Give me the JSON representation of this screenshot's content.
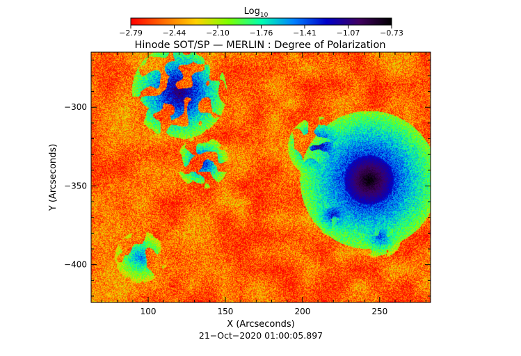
{
  "chart_data": {
    "type": "heatmap",
    "title": "Hinode SOT/SP — MERLIN : Degree of Polarization",
    "xlabel": "X (Arcseconds)",
    "ylabel": "Y (Arcseconds)",
    "timestamp": "21−Oct−2020 01:00:05.897",
    "xlim": [
      63,
      283
    ],
    "ylim": [
      -424,
      -265
    ],
    "x_ticks": [
      100,
      150,
      200,
      250
    ],
    "y_ticks": [
      -300,
      -350,
      -400
    ],
    "x_tick_labels": [
      "100",
      "150",
      "200",
      "250"
    ],
    "y_tick_labels": [
      "−300",
      "−350",
      "−400"
    ],
    "colorbar": {
      "label_base": "Log",
      "label_sub": "10",
      "range": [
        -2.79,
        -0.73
      ],
      "tick_labels": [
        "−2.79",
        "−2.44",
        "−2.10",
        "−1.76",
        "−1.41",
        "−1.07",
        "−0.73"
      ],
      "colors": [
        "#ff0000",
        "#ff6a00",
        "#ffd000",
        "#7cff00",
        "#00ffb0",
        "#0080ff",
        "#0000c8",
        "#400060",
        "#000000"
      ]
    },
    "features": [
      {
        "name": "sunspot",
        "x": 243,
        "y": -346,
        "radius": 16,
        "level": -0.73
      },
      {
        "name": "network-patch",
        "x": 120,
        "y": -290,
        "radius": 22,
        "level": -1.3
      },
      {
        "name": "network-patch",
        "x": 135,
        "y": -335,
        "radius": 12,
        "level": -1.5
      },
      {
        "name": "network-patch",
        "x": 210,
        "y": -325,
        "radius": 14,
        "level": -1.4
      },
      {
        "name": "network-patch",
        "x": 220,
        "y": -368,
        "radius": 10,
        "level": -1.5
      },
      {
        "name": "network-patch",
        "x": 250,
        "y": -382,
        "radius": 10,
        "level": -1.6
      },
      {
        "name": "network-patch",
        "x": 95,
        "y": -395,
        "radius": 12,
        "level": -1.7
      }
    ]
  }
}
